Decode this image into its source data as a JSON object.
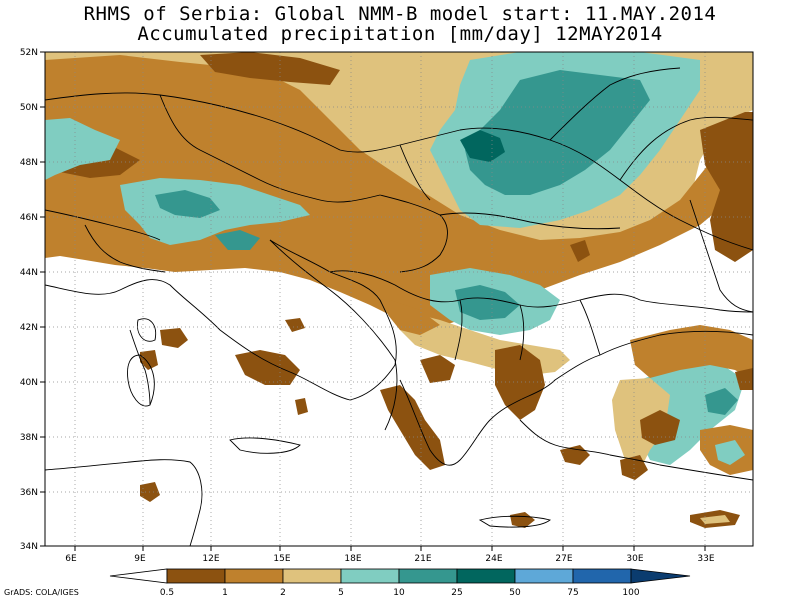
{
  "title_line1": "RHMS of Serbia: Global NMM-B model    start: 11.MAY.2014",
  "title_line2": "Accumulated precipitation [mm/day]  12MAY2014",
  "credit": "GrADS: COLA/IGES",
  "lat_labels": [
    "52N",
    "50N",
    "48N",
    "46N",
    "44N",
    "42N",
    "40N",
    "38N",
    "36N",
    "34N"
  ],
  "lon_labels": [
    "6E",
    "9E",
    "12E",
    "15E",
    "18E",
    "21E",
    "24E",
    "27E",
    "30E",
    "33E"
  ],
  "colorbar": {
    "labels": [
      "0.5",
      "1",
      "2",
      "5",
      "10",
      "25",
      "50",
      "75",
      "100"
    ],
    "colors": [
      "#ffffff",
      "#8c5210",
      "#bf812d",
      "#dfc27d",
      "#80cdc1",
      "#35978f",
      "#01665e",
      "#5ea8d8",
      "#2166ac",
      "#0b3c6f"
    ]
  },
  "colors": {
    "c1": "#8c5210",
    "c2": "#bf812d",
    "c3": "#dfc27d",
    "c4": "#80cdc1",
    "c5": "#35978f",
    "c6": "#01665e"
  }
}
